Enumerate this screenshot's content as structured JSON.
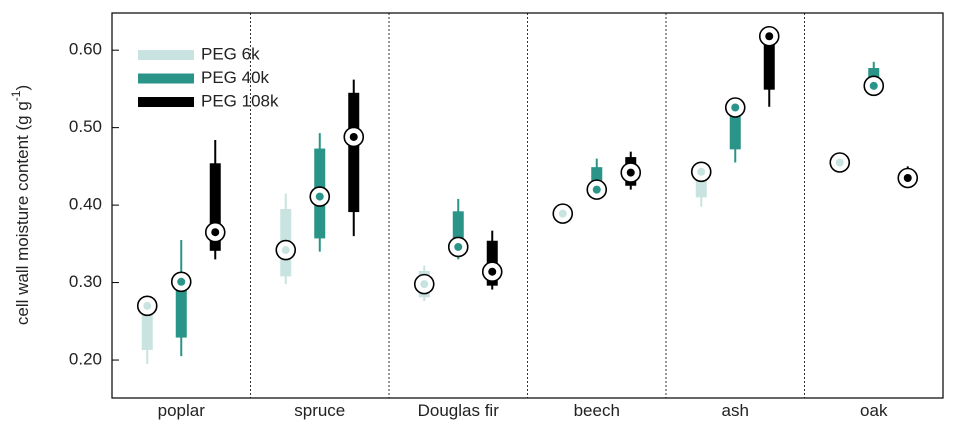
{
  "chart_data": {
    "type": "box",
    "y_label": "cell wall moisture content (g g",
    "y_label_superscript": "-1",
    "y_label_end": ")",
    "categories": [
      "poplar",
      "spruce",
      "Douglas fir",
      "beech",
      "ash",
      "oak"
    ],
    "ylim": [
      0.151,
      0.648
    ],
    "yticks": [
      {
        "value": 0.2,
        "label": "0.20"
      },
      {
        "value": 0.3,
        "label": "0.30"
      },
      {
        "value": 0.4,
        "label": "0.40"
      },
      {
        "value": 0.5,
        "label": "0.50"
      },
      {
        "value": 0.6,
        "label": "0.60"
      }
    ],
    "legend": "upper left",
    "series": [
      {
        "name": "PEG 6k",
        "color": "#c9e4e0",
        "low": [
          0.195,
          0.298,
          0.276,
          0.383,
          0.398,
          0.45
        ],
        "q1": [
          0.213,
          0.308,
          0.281,
          0.386,
          0.41,
          0.452
        ],
        "q3": [
          0.262,
          0.395,
          0.315,
          0.397,
          0.44,
          0.46
        ],
        "high": [
          0.275,
          0.415,
          0.322,
          0.401,
          0.448,
          0.462
        ],
        "mean": [
          0.27,
          0.342,
          0.298,
          0.389,
          0.443,
          0.455
        ]
      },
      {
        "name": "PEG 40k",
        "color": "#2a9488",
        "low": [
          0.205,
          0.34,
          0.33,
          0.41,
          0.455,
          0.55
        ],
        "q1": [
          0.229,
          0.357,
          0.345,
          0.415,
          0.472,
          0.555
        ],
        "q3": [
          0.303,
          0.473,
          0.392,
          0.449,
          0.528,
          0.577
        ],
        "high": [
          0.355,
          0.493,
          0.408,
          0.46,
          0.535,
          0.585
        ],
        "mean": [
          0.301,
          0.411,
          0.346,
          0.42,
          0.526,
          0.554
        ]
      },
      {
        "name": "PEG 108k",
        "color": "#000000",
        "low": [
          0.33,
          0.36,
          0.291,
          0.42,
          0.527,
          0.43
        ],
        "q1": [
          0.341,
          0.391,
          0.296,
          0.425,
          0.549,
          0.432
        ],
        "q3": [
          0.454,
          0.545,
          0.354,
          0.462,
          0.61,
          0.445
        ],
        "high": [
          0.484,
          0.562,
          0.367,
          0.469,
          0.62,
          0.45
        ],
        "mean": [
          0.365,
          0.488,
          0.314,
          0.442,
          0.618,
          0.435
        ]
      }
    ]
  }
}
